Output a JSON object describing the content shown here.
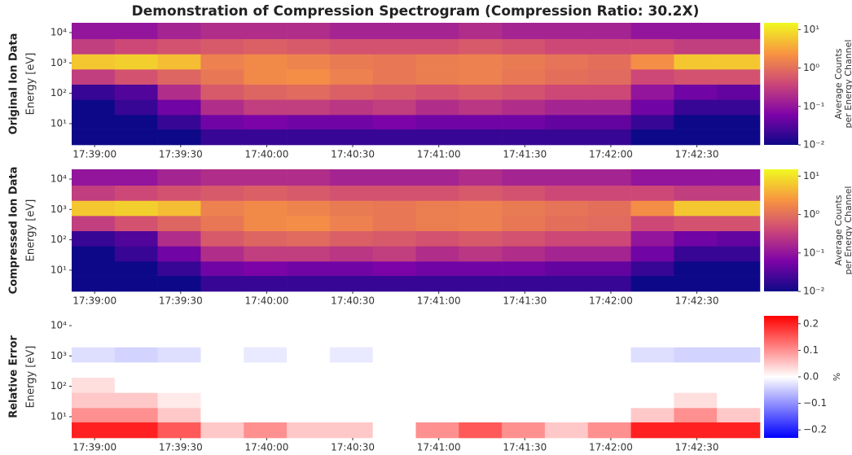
{
  "chart_data": [
    {
      "type": "heatmap",
      "title": "Demonstration of Compression Spectrogram (Compression Ratio: 30.2X)",
      "ylabel_title": "Original Ion Data",
      "ylabel": "Energy [eV]",
      "x": [
        "17:38:52",
        "17:39:07",
        "17:39:22",
        "17:39:37",
        "17:39:52",
        "17:40:07",
        "17:40:22",
        "17:40:37",
        "17:40:52",
        "17:41:07",
        "17:41:22",
        "17:41:37",
        "17:41:52",
        "17:42:07",
        "17:42:22",
        "17:42:37"
      ],
      "y": [
        4,
        11,
        35,
        110,
        350,
        1100,
        3500,
        11000
      ],
      "z": [
        [
          0.01,
          0.01,
          0.01,
          0.02,
          0.02,
          0.02,
          0.02,
          0.02,
          0.02,
          0.02,
          0.02,
          0.02,
          0.02,
          0.01,
          0.01,
          0.01
        ],
        [
          0.01,
          0.01,
          0.02,
          0.05,
          0.06,
          0.05,
          0.05,
          0.06,
          0.05,
          0.05,
          0.05,
          0.04,
          0.04,
          0.02,
          0.01,
          0.01
        ],
        [
          0.01,
          0.02,
          0.05,
          0.2,
          0.3,
          0.3,
          0.25,
          0.3,
          0.2,
          0.25,
          0.2,
          0.15,
          0.15,
          0.05,
          0.02,
          0.02
        ],
        [
          0.02,
          0.03,
          0.2,
          0.6,
          0.8,
          0.9,
          0.7,
          0.6,
          0.5,
          0.6,
          0.5,
          0.4,
          0.4,
          0.1,
          0.05,
          0.04
        ],
        [
          0.3,
          0.5,
          0.8,
          1.2,
          1.8,
          2,
          1.5,
          1.2,
          1.4,
          1.5,
          1.2,
          1,
          0.9,
          0.4,
          0.5,
          0.5
        ],
        [
          6,
          7,
          5,
          1.5,
          1.8,
          1.6,
          1.3,
          1.2,
          1.4,
          1.5,
          1.3,
          1.1,
          1,
          2,
          6,
          6
        ],
        [
          0.3,
          0.4,
          0.5,
          0.6,
          0.7,
          0.6,
          0.5,
          0.5,
          0.5,
          0.6,
          0.5,
          0.4,
          0.4,
          0.4,
          0.3,
          0.3
        ],
        [
          0.1,
          0.1,
          0.15,
          0.2,
          0.2,
          0.2,
          0.15,
          0.15,
          0.15,
          0.2,
          0.15,
          0.15,
          0.15,
          0.1,
          0.1,
          0.1
        ]
      ],
      "xlim": [
        "17:38:52",
        "17:42:52"
      ],
      "xticks": [
        "17:39:00",
        "17:39:30",
        "17:40:00",
        "17:40:30",
        "17:41:00",
        "17:41:30",
        "17:42:00",
        "17:42:30"
      ],
      "ylim": [
        2,
        21000
      ],
      "log_y": true,
      "yticks": [
        {
          "value": 10,
          "label": "10¹"
        },
        {
          "value": 100,
          "label": "10²"
        },
        {
          "value": 1000,
          "label": "10³"
        },
        {
          "value": 10000,
          "label": "10⁴"
        }
      ],
      "colorbar": {
        "label": [
          "Average Counts",
          "per Energy Channel"
        ],
        "cmap": "plasma",
        "log": true,
        "lim": [
          0.01,
          15
        ],
        "ticks": [
          {
            "value": 10,
            "label": "10¹"
          },
          {
            "value": 1,
            "label": "10⁰"
          },
          {
            "value": 0.1,
            "label": "10⁻¹"
          },
          {
            "value": 0.01,
            "label": "10⁻²"
          }
        ]
      }
    },
    {
      "type": "heatmap",
      "ylabel_title": "Compressed Ion Data",
      "ylabel": "Energy [eV]",
      "x": [
        "17:38:52",
        "17:39:07",
        "17:39:22",
        "17:39:37",
        "17:39:52",
        "17:40:07",
        "17:40:22",
        "17:40:37",
        "17:40:52",
        "17:41:07",
        "17:41:22",
        "17:41:37",
        "17:41:52",
        "17:42:07",
        "17:42:22",
        "17:42:37"
      ],
      "y": [
        4,
        11,
        35,
        110,
        350,
        1100,
        3500,
        11000
      ],
      "z": [
        [
          0.01,
          0.01,
          0.01,
          0.02,
          0.02,
          0.02,
          0.02,
          0.02,
          0.02,
          0.02,
          0.02,
          0.02,
          0.02,
          0.01,
          0.01,
          0.01
        ],
        [
          0.01,
          0.01,
          0.02,
          0.05,
          0.06,
          0.05,
          0.05,
          0.06,
          0.05,
          0.05,
          0.05,
          0.04,
          0.04,
          0.02,
          0.01,
          0.01
        ],
        [
          0.01,
          0.02,
          0.05,
          0.2,
          0.3,
          0.3,
          0.25,
          0.3,
          0.2,
          0.25,
          0.2,
          0.15,
          0.15,
          0.05,
          0.02,
          0.02
        ],
        [
          0.02,
          0.03,
          0.2,
          0.6,
          0.8,
          0.9,
          0.7,
          0.6,
          0.5,
          0.6,
          0.5,
          0.4,
          0.4,
          0.1,
          0.05,
          0.04
        ],
        [
          0.3,
          0.5,
          0.8,
          1.2,
          1.8,
          2,
          1.5,
          1.2,
          1.4,
          1.5,
          1.2,
          1,
          0.9,
          0.4,
          0.5,
          0.5
        ],
        [
          6,
          7,
          5,
          1.5,
          1.8,
          1.6,
          1.3,
          1.2,
          1.4,
          1.5,
          1.3,
          1.1,
          1,
          2,
          6,
          6
        ],
        [
          0.3,
          0.4,
          0.5,
          0.6,
          0.7,
          0.6,
          0.5,
          0.5,
          0.5,
          0.6,
          0.5,
          0.4,
          0.4,
          0.4,
          0.3,
          0.3
        ],
        [
          0.1,
          0.1,
          0.15,
          0.2,
          0.2,
          0.2,
          0.15,
          0.15,
          0.15,
          0.2,
          0.15,
          0.15,
          0.15,
          0.1,
          0.1,
          0.1
        ]
      ],
      "xlim": [
        "17:38:52",
        "17:42:52"
      ],
      "xticks": [
        "17:39:00",
        "17:39:30",
        "17:40:00",
        "17:40:30",
        "17:41:00",
        "17:41:30",
        "17:42:00",
        "17:42:30"
      ],
      "ylim": [
        2,
        21000
      ],
      "log_y": true,
      "yticks": [
        {
          "value": 10,
          "label": "10¹"
        },
        {
          "value": 100,
          "label": "10²"
        },
        {
          "value": 1000,
          "label": "10³"
        },
        {
          "value": 10000,
          "label": "10⁴"
        }
      ],
      "colorbar": {
        "label": [
          "Average Counts",
          "per Energy Channel"
        ],
        "cmap": "plasma",
        "log": true,
        "lim": [
          0.01,
          15
        ],
        "ticks": [
          {
            "value": 10,
            "label": "10¹"
          },
          {
            "value": 1,
            "label": "10⁰"
          },
          {
            "value": 0.1,
            "label": "10⁻¹"
          },
          {
            "value": 0.01,
            "label": "10⁻²"
          }
        ]
      }
    },
    {
      "type": "heatmap",
      "ylabel_title": "Relative Error",
      "ylabel": "Energy [eV]",
      "x": [
        "17:38:52",
        "17:39:07",
        "17:39:22",
        "17:39:37",
        "17:39:52",
        "17:40:07",
        "17:40:22",
        "17:40:37",
        "17:40:52",
        "17:41:07",
        "17:41:22",
        "17:41:37",
        "17:41:52",
        "17:42:07",
        "17:42:22",
        "17:42:37"
      ],
      "y": [
        4,
        11,
        35,
        110,
        350,
        1100,
        3500,
        11000
      ],
      "z": [
        [
          0.2,
          0.2,
          0.15,
          0.05,
          0.1,
          0.05,
          0.05,
          0,
          0.1,
          0.15,
          0.1,
          0.05,
          0.1,
          0.2,
          0.2,
          0.2
        ],
        [
          0.1,
          0.1,
          0.05,
          0,
          0,
          0,
          0,
          0,
          0,
          0,
          0,
          0,
          0,
          0.05,
          0.1,
          0.05
        ],
        [
          0.05,
          0.05,
          0.02,
          0,
          0,
          0,
          0,
          0,
          0,
          0,
          0,
          0,
          0,
          0,
          0.03,
          0
        ],
        [
          0.03,
          0,
          0,
          0,
          0,
          0,
          0,
          0,
          0,
          0,
          0,
          0,
          0,
          0,
          0,
          0
        ],
        [
          0,
          0,
          0,
          0,
          0,
          0,
          0,
          0,
          0,
          0,
          0,
          0,
          0,
          0,
          0,
          0
        ],
        [
          -0.03,
          -0.04,
          -0.03,
          0,
          -0.02,
          0,
          -0.02,
          0,
          0,
          0,
          0,
          0,
          0,
          -0.03,
          -0.04,
          -0.04
        ],
        [
          0,
          0,
          0,
          0,
          0,
          0,
          0,
          0,
          0,
          0,
          0,
          0,
          0,
          0,
          0,
          0
        ],
        [
          0,
          0,
          0,
          0,
          0,
          0,
          0,
          0,
          0,
          0,
          0,
          0,
          0,
          0,
          0,
          0
        ]
      ],
      "xlim": [
        "17:38:52",
        "17:42:52"
      ],
      "xticks": [
        "17:39:00",
        "17:39:30",
        "17:40:00",
        "17:40:30",
        "17:41:00",
        "17:41:30",
        "17:42:00",
        "17:42:30"
      ],
      "ylim": [
        2,
        21000
      ],
      "log_y": true,
      "yticks": [
        {
          "value": 10,
          "label": "10¹"
        },
        {
          "value": 100,
          "label": "10²"
        },
        {
          "value": 1000,
          "label": "10³"
        },
        {
          "value": 10000,
          "label": "10⁴"
        }
      ],
      "colorbar": {
        "label": [
          "%"
        ],
        "cmap": "bwr",
        "log": false,
        "lim": [
          -0.23,
          0.23
        ],
        "ticks": [
          0.2,
          0.1,
          {
            "value": 0,
            "label": "0.0"
          },
          {
            "value": -0.1,
            "label": "−0.1"
          },
          {
            "value": -0.2,
            "label": "−0.2"
          }
        ]
      }
    }
  ]
}
